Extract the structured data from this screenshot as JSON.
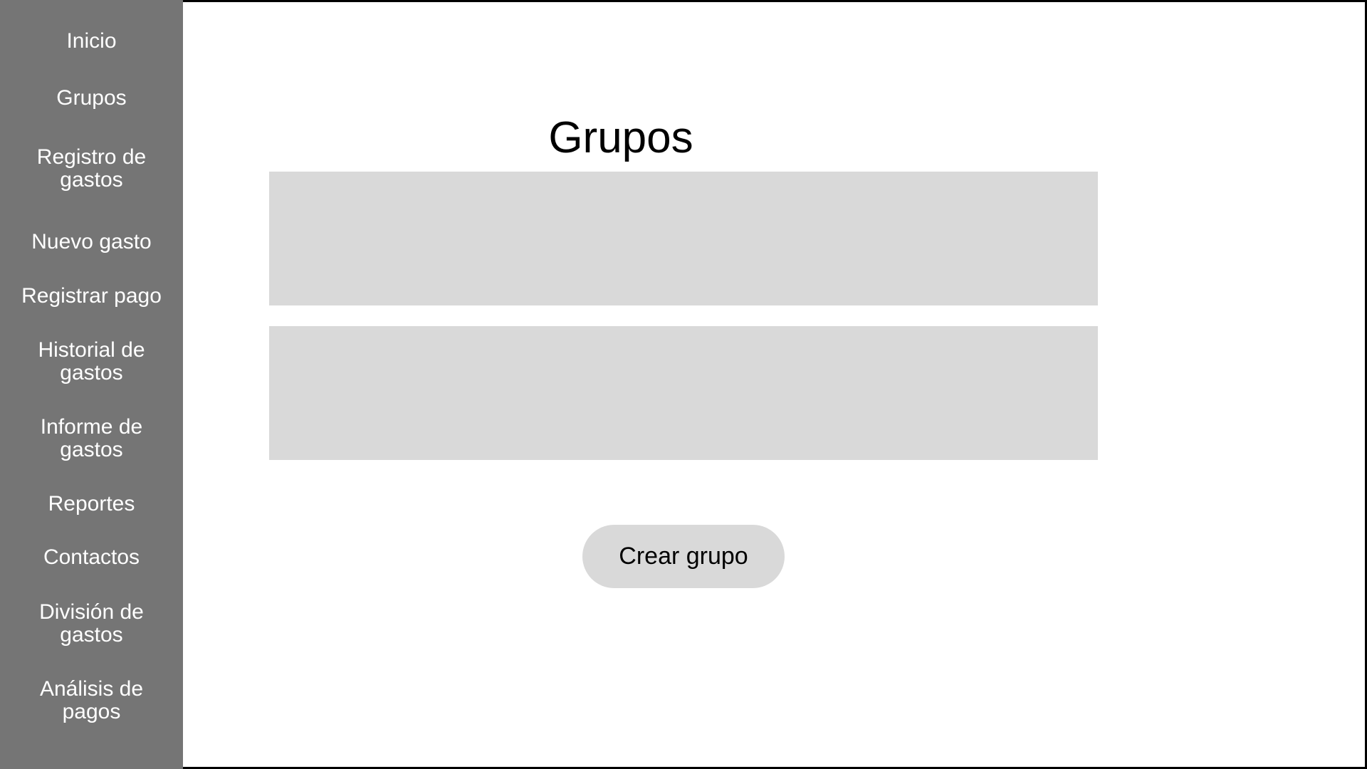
{
  "sidebar": {
    "items": [
      {
        "label": "Inicio"
      },
      {
        "label": "Grupos"
      },
      {
        "label": "Registro de\ngastos"
      },
      {
        "label": "Nuevo gasto"
      },
      {
        "label": "Registrar pago"
      },
      {
        "label": "Historial de\ngastos"
      },
      {
        "label": "Informe de\ngastos"
      },
      {
        "label": "Reportes"
      },
      {
        "label": "Contactos"
      },
      {
        "label": "División de\ngastos"
      },
      {
        "label": "Análisis de\npagos"
      }
    ]
  },
  "main": {
    "title": "Grupos",
    "create_button_label": "Crear grupo"
  },
  "colors": {
    "sidebar_bg": "#757575",
    "card_bg": "#d9d9d9",
    "button_bg": "#d9d9d9"
  }
}
